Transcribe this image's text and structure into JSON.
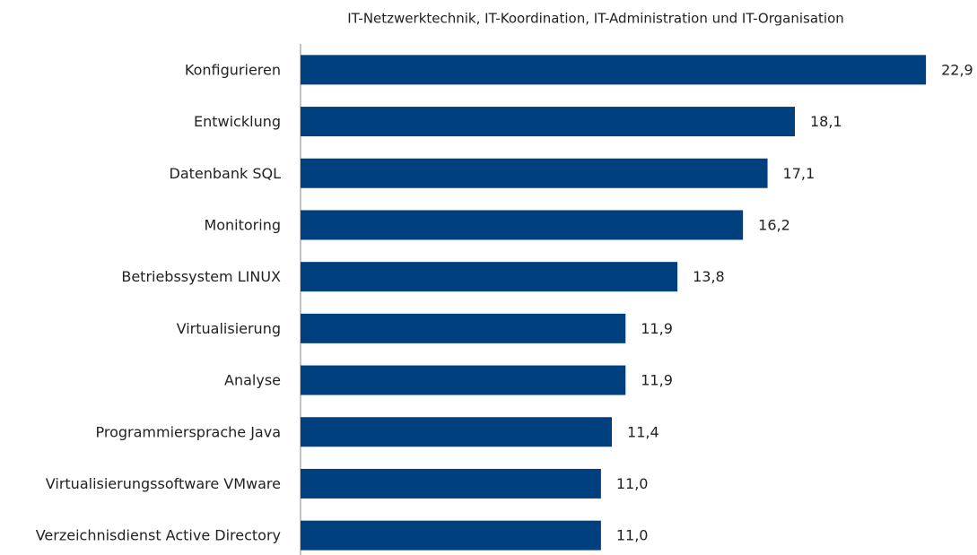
{
  "chart_data": {
    "type": "hbar",
    "title": "IT-Netzwerktechnik,  IT-Koordination,  IT-Administration  und IT-Organisation",
    "categories": [
      "Konfigurieren",
      "Entwicklung",
      "Datenbank SQL",
      "Monitoring",
      "Betriebssystem LINUX",
      "Virtualisierung",
      "Analyse",
      "Programmiersprache Java",
      "Virtualisierungssoftware VMware",
      "Verzeichnisdienst Active Directory"
    ],
    "values": [
      22.9,
      18.1,
      17.1,
      16.2,
      13.8,
      11.9,
      11.9,
      11.4,
      11.0,
      11.0
    ],
    "value_labels": [
      "22,9",
      "18,1",
      "17,1",
      "16,2",
      "13,8",
      "11,9",
      "11,9",
      "11,4",
      "11,0",
      "11,0"
    ],
    "color": "#00407f",
    "xlim": [
      0,
      24
    ]
  }
}
